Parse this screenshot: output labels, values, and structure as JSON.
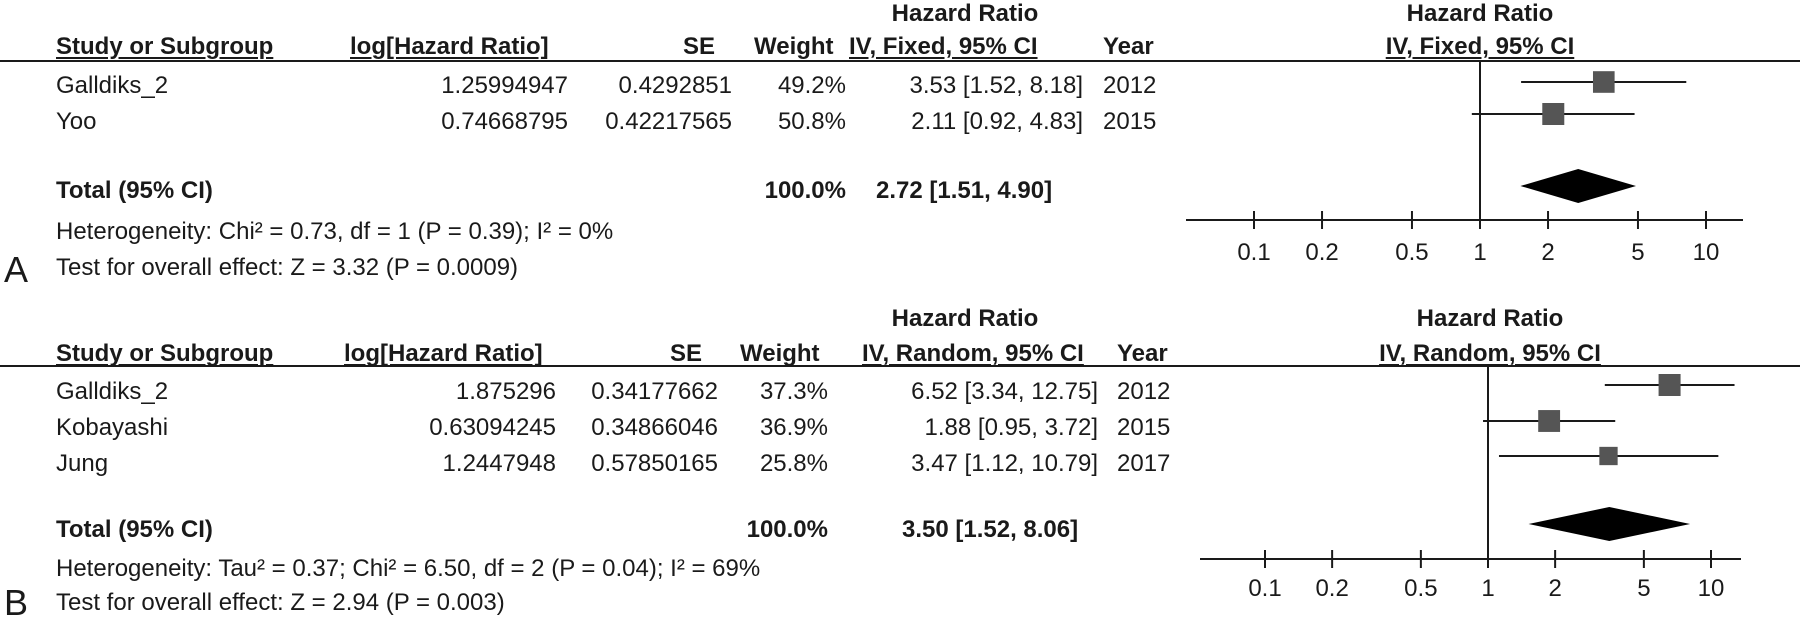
{
  "headers": {
    "study": "Study or Subgroup",
    "loghr": "log[Hazard Ratio]",
    "se": "SE",
    "weight": "Weight",
    "hr": "Hazard Ratio",
    "year": "Year"
  },
  "panels": [
    {
      "letter": "A",
      "method": "IV, Fixed, 95% CI",
      "studies": [
        {
          "name": "Galldiks_2",
          "loghr": "1.25994947",
          "se": "0.4292851",
          "weight": "49.2%",
          "ci": "3.53 [1.52, 8.18]",
          "year": "2012"
        },
        {
          "name": "Yoo",
          "loghr": "0.74668795",
          "se": "0.42217565",
          "weight": "50.8%",
          "ci": "2.11 [0.92, 4.83]",
          "year": "2015"
        }
      ],
      "total": {
        "label": "Total (95% CI)",
        "weight": "100.0%",
        "ci": "2.72 [1.51, 4.90]"
      },
      "heterogeneity": "Heterogeneity: Chi² = 0.73, df = 1 (P = 0.39); I² = 0%",
      "overall": "Test for overall effect: Z = 3.32 (P = 0.0009)"
    },
    {
      "letter": "B",
      "method": "IV, Random, 95% CI",
      "studies": [
        {
          "name": "Galldiks_2",
          "loghr": "1.875296",
          "se": "0.34177662",
          "weight": "37.3%",
          "ci": "6.52 [3.34, 12.75]",
          "year": "2012"
        },
        {
          "name": "Kobayashi",
          "loghr": "0.63094245",
          "se": "0.34866046",
          "weight": "36.9%",
          "ci": "1.88 [0.95, 3.72]",
          "year": "2015"
        },
        {
          "name": "Jung",
          "loghr": "1.2447948",
          "se": "0.57850165",
          "weight": "25.8%",
          "ci": "3.47 [1.12, 10.79]",
          "year": "2017"
        }
      ],
      "total": {
        "label": "Total (95% CI)",
        "weight": "100.0%",
        "ci": "3.50 [1.52, 8.06]"
      },
      "heterogeneity": "Heterogeneity: Tau² = 0.37; Chi² = 6.50, df = 2 (P = 0.04); I² = 69%",
      "overall": "Test for overall effect: Z = 2.94 (P = 0.003)"
    }
  ],
  "chart_data": [
    {
      "type": "forest",
      "title": "Hazard Ratio",
      "subtitle": "IV, Fixed, 95% CI",
      "xscale": "log",
      "xticks": [
        0.1,
        0.2,
        0.5,
        1,
        2,
        5,
        10
      ],
      "xtick_labels": [
        "0.1",
        "0.2",
        "0.5",
        "1",
        "2",
        "5",
        "10"
      ],
      "reference_line": 1,
      "studies": [
        {
          "name": "Galldiks_2",
          "hr": 3.53,
          "lower": 1.52,
          "upper": 8.18,
          "weight": 49.2
        },
        {
          "name": "Yoo",
          "hr": 2.11,
          "lower": 0.92,
          "upper": 4.83,
          "weight": 50.8
        }
      ],
      "pooled": {
        "hr": 2.72,
        "lower": 1.51,
        "upper": 4.9
      },
      "colors": {
        "square": "#555555",
        "diamond": "#000000",
        "line": "#1a1a1a"
      }
    },
    {
      "type": "forest",
      "title": "Hazard Ratio",
      "subtitle": "IV, Random, 95% CI",
      "xscale": "log",
      "xticks": [
        0.1,
        0.2,
        0.5,
        1,
        2,
        5,
        10
      ],
      "xtick_labels": [
        "0.1",
        "0.2",
        "0.5",
        "1",
        "2",
        "5",
        "10"
      ],
      "reference_line": 1,
      "studies": [
        {
          "name": "Galldiks_2",
          "hr": 6.52,
          "lower": 3.34,
          "upper": 12.75,
          "weight": 37.3
        },
        {
          "name": "Kobayashi",
          "hr": 1.88,
          "lower": 0.95,
          "upper": 3.72,
          "weight": 36.9
        },
        {
          "name": "Jung",
          "hr": 3.47,
          "lower": 1.12,
          "upper": 10.79,
          "weight": 25.8
        }
      ],
      "pooled": {
        "hr": 3.5,
        "lower": 1.52,
        "upper": 8.06
      },
      "colors": {
        "square": "#555555",
        "diamond": "#000000",
        "line": "#1a1a1a"
      }
    }
  ]
}
